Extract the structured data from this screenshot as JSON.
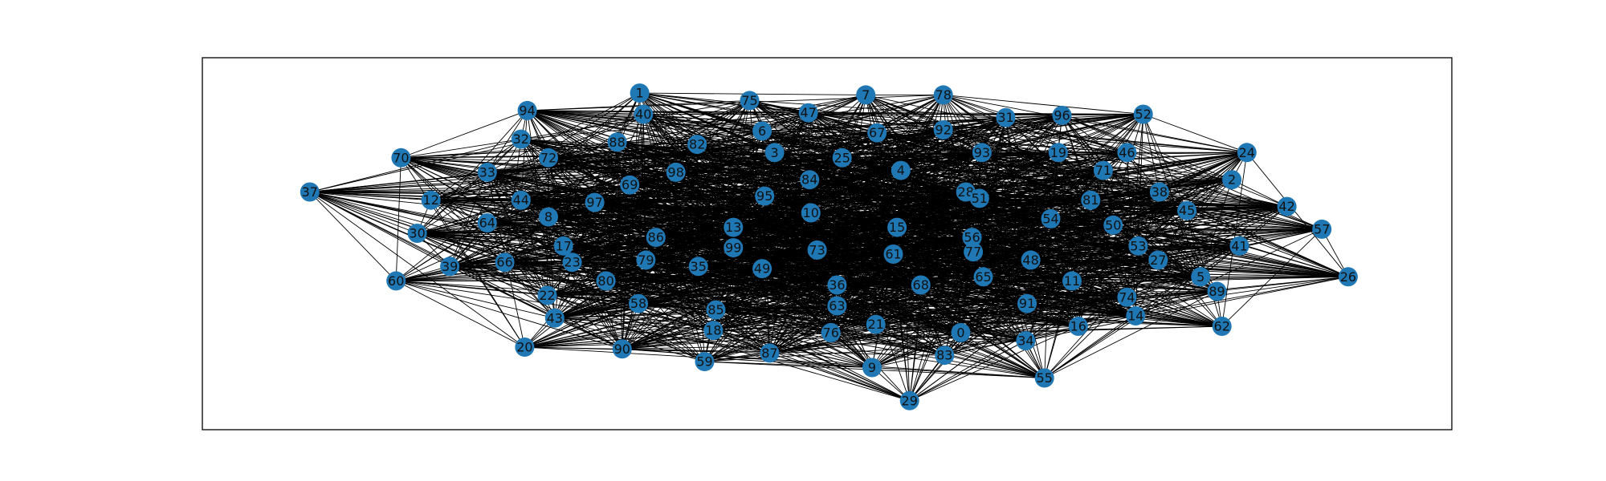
{
  "chart_data": {
    "type": "network-graph",
    "node_color": "#1f77b4",
    "edge_color": "#000000",
    "frame_color": "#000000",
    "background": "#ffffff",
    "nodes": [
      {
        "id": "1",
        "x": 0.35,
        "y": 0.905
      },
      {
        "id": "75",
        "x": 0.438,
        "y": 0.885
      },
      {
        "id": "7",
        "x": 0.531,
        "y": 0.9
      },
      {
        "id": "78",
        "x": 0.593,
        "y": 0.9
      },
      {
        "id": "52",
        "x": 0.753,
        "y": 0.848
      },
      {
        "id": "94",
        "x": 0.26,
        "y": 0.858
      },
      {
        "id": "40",
        "x": 0.353,
        "y": 0.848
      },
      {
        "id": "47",
        "x": 0.485,
        "y": 0.852
      },
      {
        "id": "31",
        "x": 0.643,
        "y": 0.839
      },
      {
        "id": "96",
        "x": 0.688,
        "y": 0.845
      },
      {
        "id": "6",
        "x": 0.448,
        "y": 0.803
      },
      {
        "id": "67",
        "x": 0.54,
        "y": 0.798
      },
      {
        "id": "92",
        "x": 0.593,
        "y": 0.806
      },
      {
        "id": "32",
        "x": 0.255,
        "y": 0.781
      },
      {
        "id": "88",
        "x": 0.332,
        "y": 0.773
      },
      {
        "id": "82",
        "x": 0.396,
        "y": 0.767
      },
      {
        "id": "3",
        "x": 0.458,
        "y": 0.745
      },
      {
        "id": "25",
        "x": 0.512,
        "y": 0.731
      },
      {
        "id": "93",
        "x": 0.624,
        "y": 0.745
      },
      {
        "id": "19",
        "x": 0.685,
        "y": 0.745
      },
      {
        "id": "46",
        "x": 0.74,
        "y": 0.745
      },
      {
        "id": "24",
        "x": 0.836,
        "y": 0.745
      },
      {
        "id": "70",
        "x": 0.159,
        "y": 0.731
      },
      {
        "id": "72",
        "x": 0.277,
        "y": 0.731
      },
      {
        "id": "33",
        "x": 0.228,
        "y": 0.692
      },
      {
        "id": "98",
        "x": 0.379,
        "y": 0.692
      },
      {
        "id": "4",
        "x": 0.559,
        "y": 0.697
      },
      {
        "id": "71",
        "x": 0.721,
        "y": 0.697
      },
      {
        "id": "84",
        "x": 0.486,
        "y": 0.672
      },
      {
        "id": "2",
        "x": 0.824,
        "y": 0.672
      },
      {
        "id": "37",
        "x": 0.086,
        "y": 0.639
      },
      {
        "id": "69",
        "x": 0.342,
        "y": 0.658
      },
      {
        "id": "38",
        "x": 0.766,
        "y": 0.639
      },
      {
        "id": "28",
        "x": 0.611,
        "y": 0.639
      },
      {
        "id": "51",
        "x": 0.622,
        "y": 0.622
      },
      {
        "id": "95",
        "x": 0.45,
        "y": 0.628
      },
      {
        "id": "12",
        "x": 0.183,
        "y": 0.617
      },
      {
        "id": "44",
        "x": 0.255,
        "y": 0.617
      },
      {
        "id": "97",
        "x": 0.314,
        "y": 0.611
      },
      {
        "id": "81",
        "x": 0.711,
        "y": 0.617
      },
      {
        "id": "42",
        "x": 0.868,
        "y": 0.6
      },
      {
        "id": "45",
        "x": 0.788,
        "y": 0.589
      },
      {
        "id": "10",
        "x": 0.487,
        "y": 0.583
      },
      {
        "id": "8",
        "x": 0.277,
        "y": 0.572
      },
      {
        "id": "64",
        "x": 0.228,
        "y": 0.556
      },
      {
        "id": "54",
        "x": 0.679,
        "y": 0.567
      },
      {
        "id": "50",
        "x": 0.729,
        "y": 0.55
      },
      {
        "id": "57",
        "x": 0.896,
        "y": 0.539
      },
      {
        "id": "13",
        "x": 0.425,
        "y": 0.544
      },
      {
        "id": "15",
        "x": 0.556,
        "y": 0.544
      },
      {
        "id": "30",
        "x": 0.172,
        "y": 0.528
      },
      {
        "id": "86",
        "x": 0.363,
        "y": 0.517
      },
      {
        "id": "56",
        "x": 0.616,
        "y": 0.517
      },
      {
        "id": "41",
        "x": 0.83,
        "y": 0.494
      },
      {
        "id": "17",
        "x": 0.289,
        "y": 0.494
      },
      {
        "id": "99",
        "x": 0.425,
        "y": 0.489
      },
      {
        "id": "53",
        "x": 0.749,
        "y": 0.494
      },
      {
        "id": "73",
        "x": 0.492,
        "y": 0.483
      },
      {
        "id": "61",
        "x": 0.553,
        "y": 0.472
      },
      {
        "id": "77",
        "x": 0.617,
        "y": 0.478
      },
      {
        "id": "79",
        "x": 0.355,
        "y": 0.456
      },
      {
        "id": "48",
        "x": 0.663,
        "y": 0.456
      },
      {
        "id": "27",
        "x": 0.765,
        "y": 0.456
      },
      {
        "id": "66",
        "x": 0.242,
        "y": 0.45
      },
      {
        "id": "23",
        "x": 0.296,
        "y": 0.45
      },
      {
        "id": "39",
        "x": 0.198,
        "y": 0.439
      },
      {
        "id": "35",
        "x": 0.397,
        "y": 0.439
      },
      {
        "id": "49",
        "x": 0.448,
        "y": 0.433
      },
      {
        "id": "5",
        "x": 0.799,
        "y": 0.411
      },
      {
        "id": "26",
        "x": 0.917,
        "y": 0.411
      },
      {
        "id": "65",
        "x": 0.625,
        "y": 0.411
      },
      {
        "id": "11",
        "x": 0.696,
        "y": 0.4
      },
      {
        "id": "60",
        "x": 0.155,
        "y": 0.4
      },
      {
        "id": "80",
        "x": 0.323,
        "y": 0.4
      },
      {
        "id": "36",
        "x": 0.508,
        "y": 0.389
      },
      {
        "id": "68",
        "x": 0.575,
        "y": 0.389
      },
      {
        "id": "89",
        "x": 0.812,
        "y": 0.372
      },
      {
        "id": "22",
        "x": 0.276,
        "y": 0.361
      },
      {
        "id": "74",
        "x": 0.74,
        "y": 0.356
      },
      {
        "id": "58",
        "x": 0.349,
        "y": 0.339
      },
      {
        "id": "91",
        "x": 0.66,
        "y": 0.339
      },
      {
        "id": "63",
        "x": 0.508,
        "y": 0.333
      },
      {
        "id": "85",
        "x": 0.411,
        "y": 0.322
      },
      {
        "id": "14",
        "x": 0.747,
        "y": 0.306
      },
      {
        "id": "43",
        "x": 0.282,
        "y": 0.3
      },
      {
        "id": "62",
        "x": 0.816,
        "y": 0.278
      },
      {
        "id": "16",
        "x": 0.701,
        "y": 0.278
      },
      {
        "id": "21",
        "x": 0.539,
        "y": 0.283
      },
      {
        "id": "18",
        "x": 0.409,
        "y": 0.267
      },
      {
        "id": "76",
        "x": 0.503,
        "y": 0.261
      },
      {
        "id": "0",
        "x": 0.607,
        "y": 0.261
      },
      {
        "id": "34",
        "x": 0.659,
        "y": 0.239
      },
      {
        "id": "20",
        "x": 0.258,
        "y": 0.222
      },
      {
        "id": "90",
        "x": 0.336,
        "y": 0.217
      },
      {
        "id": "87",
        "x": 0.454,
        "y": 0.206
      },
      {
        "id": "83",
        "x": 0.594,
        "y": 0.2
      },
      {
        "id": "59",
        "x": 0.402,
        "y": 0.183
      },
      {
        "id": "9",
        "x": 0.536,
        "y": 0.167
      },
      {
        "id": "55",
        "x": 0.674,
        "y": 0.139
      },
      {
        "id": "29",
        "x": 0.566,
        "y": 0.078
      }
    ]
  }
}
